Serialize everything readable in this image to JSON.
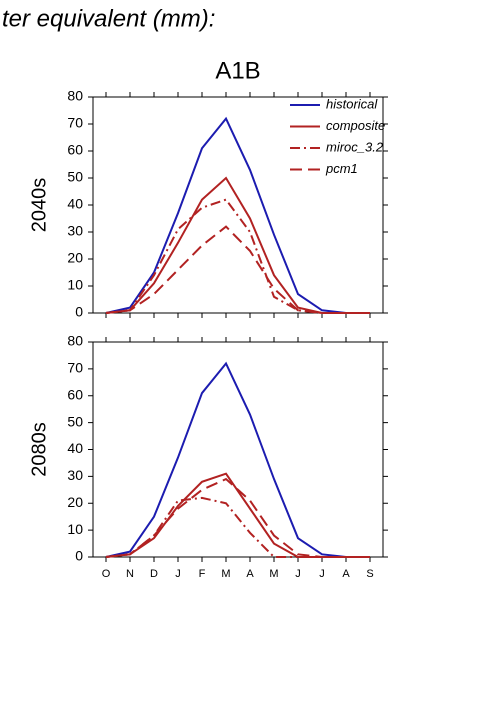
{
  "header": {
    "text": "ter equivalent (mm):"
  },
  "chart_data": [
    {
      "type": "line",
      "title": "A1B",
      "ylabel": "2040s",
      "ylim": [
        0,
        80
      ],
      "yticks": [
        0,
        10,
        20,
        30,
        40,
        50,
        60,
        70,
        80
      ],
      "legend": "upper right",
      "series": [
        {
          "name": "historical",
          "color": "#1c1cb0",
          "linestyle": "solid",
          "values": [
            0,
            2,
            15,
            37,
            61,
            72,
            53,
            29,
            7,
            1,
            0,
            0
          ]
        },
        {
          "name": "composite",
          "color": "#b22222",
          "linestyle": "solid",
          "values": [
            0,
            1,
            11,
            26,
            42,
            50,
            35,
            14,
            2,
            0,
            0,
            0
          ]
        },
        {
          "name": "miroc_3.2",
          "color": "#b22222",
          "linestyle": "dash-dot",
          "values": [
            0,
            1,
            14,
            31,
            39,
            42,
            30,
            6,
            1,
            0,
            0,
            0
          ]
        },
        {
          "name": "pcm1",
          "color": "#b22222",
          "linestyle": "dash",
          "values": [
            0,
            1,
            7,
            16,
            25,
            32,
            23,
            9,
            1,
            0,
            0,
            0
          ]
        }
      ]
    },
    {
      "type": "line",
      "ylabel": "2080s",
      "categories": [
        "O",
        "N",
        "D",
        "J",
        "F",
        "M",
        "A",
        "M",
        "J",
        "J",
        "A",
        "S"
      ],
      "ylim": [
        0,
        80
      ],
      "yticks": [
        0,
        10,
        20,
        30,
        40,
        50,
        60,
        70,
        80
      ],
      "series": [
        {
          "color": "#1c1cb0",
          "linestyle": "solid",
          "values": [
            0,
            2,
            15,
            37,
            61,
            72,
            53,
            29,
            7,
            1,
            0,
            0
          ]
        },
        {
          "color": "#b22222",
          "linestyle": "solid",
          "values": [
            0,
            1,
            7,
            19,
            28,
            31,
            18,
            5,
            0,
            0,
            0,
            0
          ]
        },
        {
          "color": "#b22222",
          "linestyle": "dash-dot",
          "values": [
            0,
            1,
            8,
            21,
            22,
            20,
            9,
            0,
            0,
            0,
            0,
            0
          ]
        },
        {
          "color": "#b22222",
          "linestyle": "dash",
          "values": [
            0,
            1,
            8,
            18,
            25,
            29,
            21,
            8,
            1,
            0,
            0,
            0
          ]
        }
      ]
    }
  ]
}
